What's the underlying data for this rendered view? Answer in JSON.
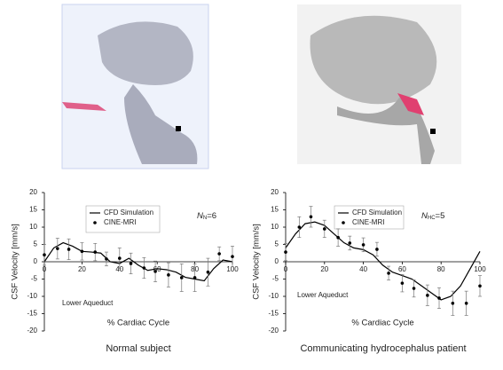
{
  "chart_data": [
    {
      "type": "line",
      "ylabel": "CSF Velocity [mm/s]",
      "xlabel": "% Cardiac Cycle",
      "annotation": "Lower Aqueduct",
      "sample_size": {
        "symbol": "N",
        "subscript": "N",
        "text": "=6"
      },
      "caption": "Normal subject",
      "xlim": [
        0,
        100
      ],
      "ylim": [
        -20,
        20
      ],
      "xticks": [
        0,
        20,
        40,
        60,
        80,
        100
      ],
      "yticks": [
        20,
        15,
        10,
        5,
        0,
        -5,
        -10,
        -15,
        -20
      ],
      "series": [
        {
          "name": "CFD Simulation",
          "color": "#000000",
          "style": "line",
          "x": [
            0,
            5,
            10,
            15,
            20,
            25,
            30,
            35,
            40,
            45,
            50,
            55,
            60,
            65,
            70,
            75,
            80,
            85,
            90,
            95,
            100
          ],
          "values": [
            0,
            4,
            5.5,
            4.5,
            3,
            2.8,
            2.5,
            0,
            -0.5,
            1,
            -1,
            -2.5,
            -2,
            -2.3,
            -3,
            -4.5,
            -5,
            -5.5,
            -2,
            0.5,
            0
          ]
        },
        {
          "name": "CINE-MRI",
          "color": "#000000",
          "style": "marker",
          "x": [
            0,
            7,
            13,
            20,
            27,
            33,
            40,
            46,
            53,
            59,
            66,
            73,
            80,
            87,
            93,
            100
          ],
          "values": [
            2,
            3.8,
            3.6,
            3,
            2.8,
            0.8,
            1,
            -0.5,
            -1.8,
            -2.8,
            -3.8,
            -4.6,
            -4.6,
            -3,
            2.3,
            1.5
          ],
          "errors": [
            3,
            3,
            3,
            2.5,
            2.5,
            2,
            3,
            3,
            3,
            3,
            3.5,
            4,
            4,
            4,
            2,
            3
          ]
        }
      ]
    },
    {
      "type": "line",
      "ylabel": "CSF Velocity [mm/s]",
      "xlabel": "% Cardiac Cycle",
      "annotation": "Lower Aqueduct",
      "sample_size": {
        "symbol": "N",
        "subscript": "HC",
        "text": "=5"
      },
      "caption": "Communicating hydrocephalus patient",
      "xlim": [
        0,
        100
      ],
      "ylim": [
        -20,
        20
      ],
      "xticks": [
        0,
        20,
        40,
        60,
        80,
        100
      ],
      "yticks": [
        20,
        15,
        10,
        5,
        0,
        -5,
        -10,
        -15,
        -20
      ],
      "series": [
        {
          "name": "CFD Simulation",
          "color": "#000000",
          "style": "line",
          "x": [
            0,
            5,
            10,
            15,
            20,
            25,
            30,
            35,
            40,
            45,
            50,
            55,
            60,
            65,
            70,
            75,
            80,
            85,
            90,
            95,
            100
          ],
          "values": [
            4,
            8,
            11,
            11.5,
            10.5,
            8,
            5.5,
            4,
            3.5,
            2,
            -1,
            -3,
            -4,
            -5,
            -7,
            -9,
            -11,
            -10,
            -7,
            -2,
            3
          ]
        },
        {
          "name": "CINE-MRI",
          "color": "#000000",
          "style": "marker",
          "x": [
            0,
            7,
            13,
            20,
            27,
            33,
            40,
            47,
            53,
            60,
            66,
            73,
            79,
            86,
            93,
            100
          ],
          "values": [
            2.8,
            10,
            13,
            9.5,
            7,
            5.4,
            4.9,
            3.6,
            -3.3,
            -6.2,
            -7.7,
            -9.7,
            -10.5,
            -12,
            -12,
            -7
          ],
          "errors": [
            2.5,
            3,
            3,
            2.5,
            2.5,
            2,
            2,
            2,
            2,
            2.5,
            2.5,
            3,
            3,
            3.5,
            3.5,
            3
          ]
        }
      ]
    }
  ]
}
